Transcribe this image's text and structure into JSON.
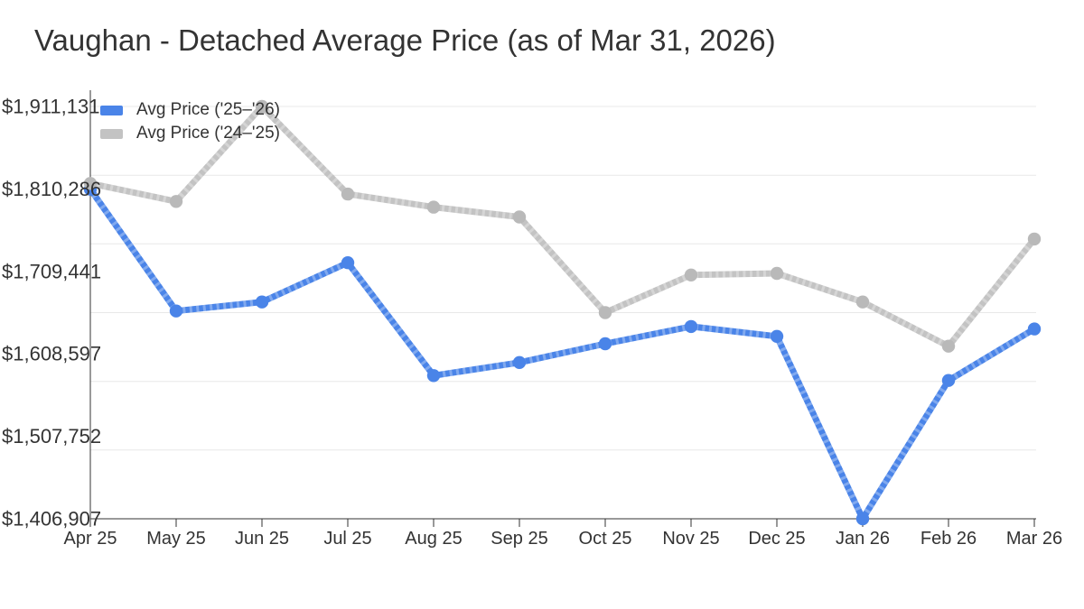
{
  "page": {
    "background_color": "#ffffff"
  },
  "chart_data": {
    "type": "line",
    "title": "Vaughan - Detached Average Price (as of Mar 31, 2026)",
    "x": [
      "Apr 25",
      "May 25",
      "Jun 25",
      "Jul 25",
      "Aug 25",
      "Sep 25",
      "Oct 25",
      "Nov 25",
      "Dec 25",
      "Jan 26",
      "Feb 26",
      "Mar 26"
    ],
    "series": [
      {
        "name": "Avg Price ('25–'26)",
        "color": "#4a84e8",
        "marker_color": "#4a84e8",
        "values": [
          1810000,
          1661000,
          1672000,
          1720000,
          1582000,
          1598000,
          1621000,
          1642000,
          1630000,
          1406907,
          1576000,
          1639000
        ]
      },
      {
        "name": "Avg Price ('24–'25)",
        "color": "#c3c3c3",
        "marker_color": "#b9b9b9",
        "values": [
          1817000,
          1795000,
          1911131,
          1804000,
          1788000,
          1776000,
          1659000,
          1705000,
          1707000,
          1672000,
          1618000,
          1749000
        ]
      }
    ],
    "y_axis": {
      "min": 1406907,
      "max": 1911131,
      "tick_labels": [
        "$1,911,131",
        "$1,810,286",
        "$1,709,441",
        "$1,608,597",
        "$1,507,752",
        "$1,406,907"
      ]
    },
    "legend_position": "top-left",
    "grid": {
      "horizontal_intervals": 6,
      "color": "#e8e8e8"
    },
    "axis_color": "#333333",
    "text_color": "#333333"
  }
}
